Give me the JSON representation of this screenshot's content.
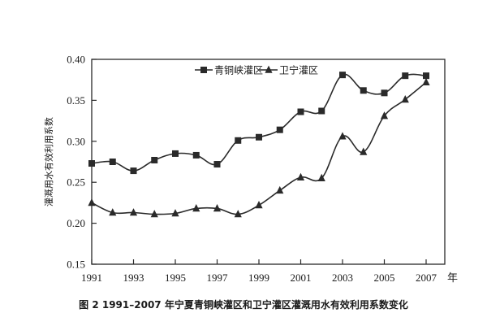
{
  "chart_data": {
    "type": "line",
    "title": "",
    "xlabel": "年",
    "ylabel": "灌溉用水有效利用系数",
    "xlim": [
      1991,
      2007
    ],
    "ylim": [
      0.15,
      0.4
    ],
    "x_ticks": [
      1991,
      1993,
      1995,
      1997,
      1999,
      2001,
      2003,
      2005,
      2007
    ],
    "y_ticks": [
      "0.15",
      "0.20",
      "0.25",
      "0.30",
      "0.35",
      "0.40"
    ],
    "grid": false,
    "legend_position": "top",
    "x": [
      1991,
      1992,
      1993,
      1994,
      1995,
      1996,
      1997,
      1998,
      1999,
      2000,
      2001,
      2002,
      2003,
      2004,
      2005,
      2006,
      2007
    ],
    "series": [
      {
        "name": "青铜峡灌区",
        "marker": "square",
        "values": [
          0.273,
          0.275,
          0.264,
          0.277,
          0.285,
          0.283,
          0.272,
          0.301,
          0.305,
          0.314,
          0.336,
          0.337,
          0.381,
          0.362,
          0.359,
          0.38,
          0.38
        ]
      },
      {
        "name": "卫宁灌区",
        "marker": "triangle",
        "values": [
          0.225,
          0.213,
          0.213,
          0.211,
          0.212,
          0.218,
          0.218,
          0.211,
          0.222,
          0.24,
          0.256,
          0.255,
          0.306,
          0.287,
          0.331,
          0.351,
          0.372
        ]
      }
    ],
    "color": "#2a2a2a"
  },
  "caption": "图 2 1991–2007 年宁夏青铜峡灌区和卫宁灌区灌溉用水有效利用系数变化"
}
